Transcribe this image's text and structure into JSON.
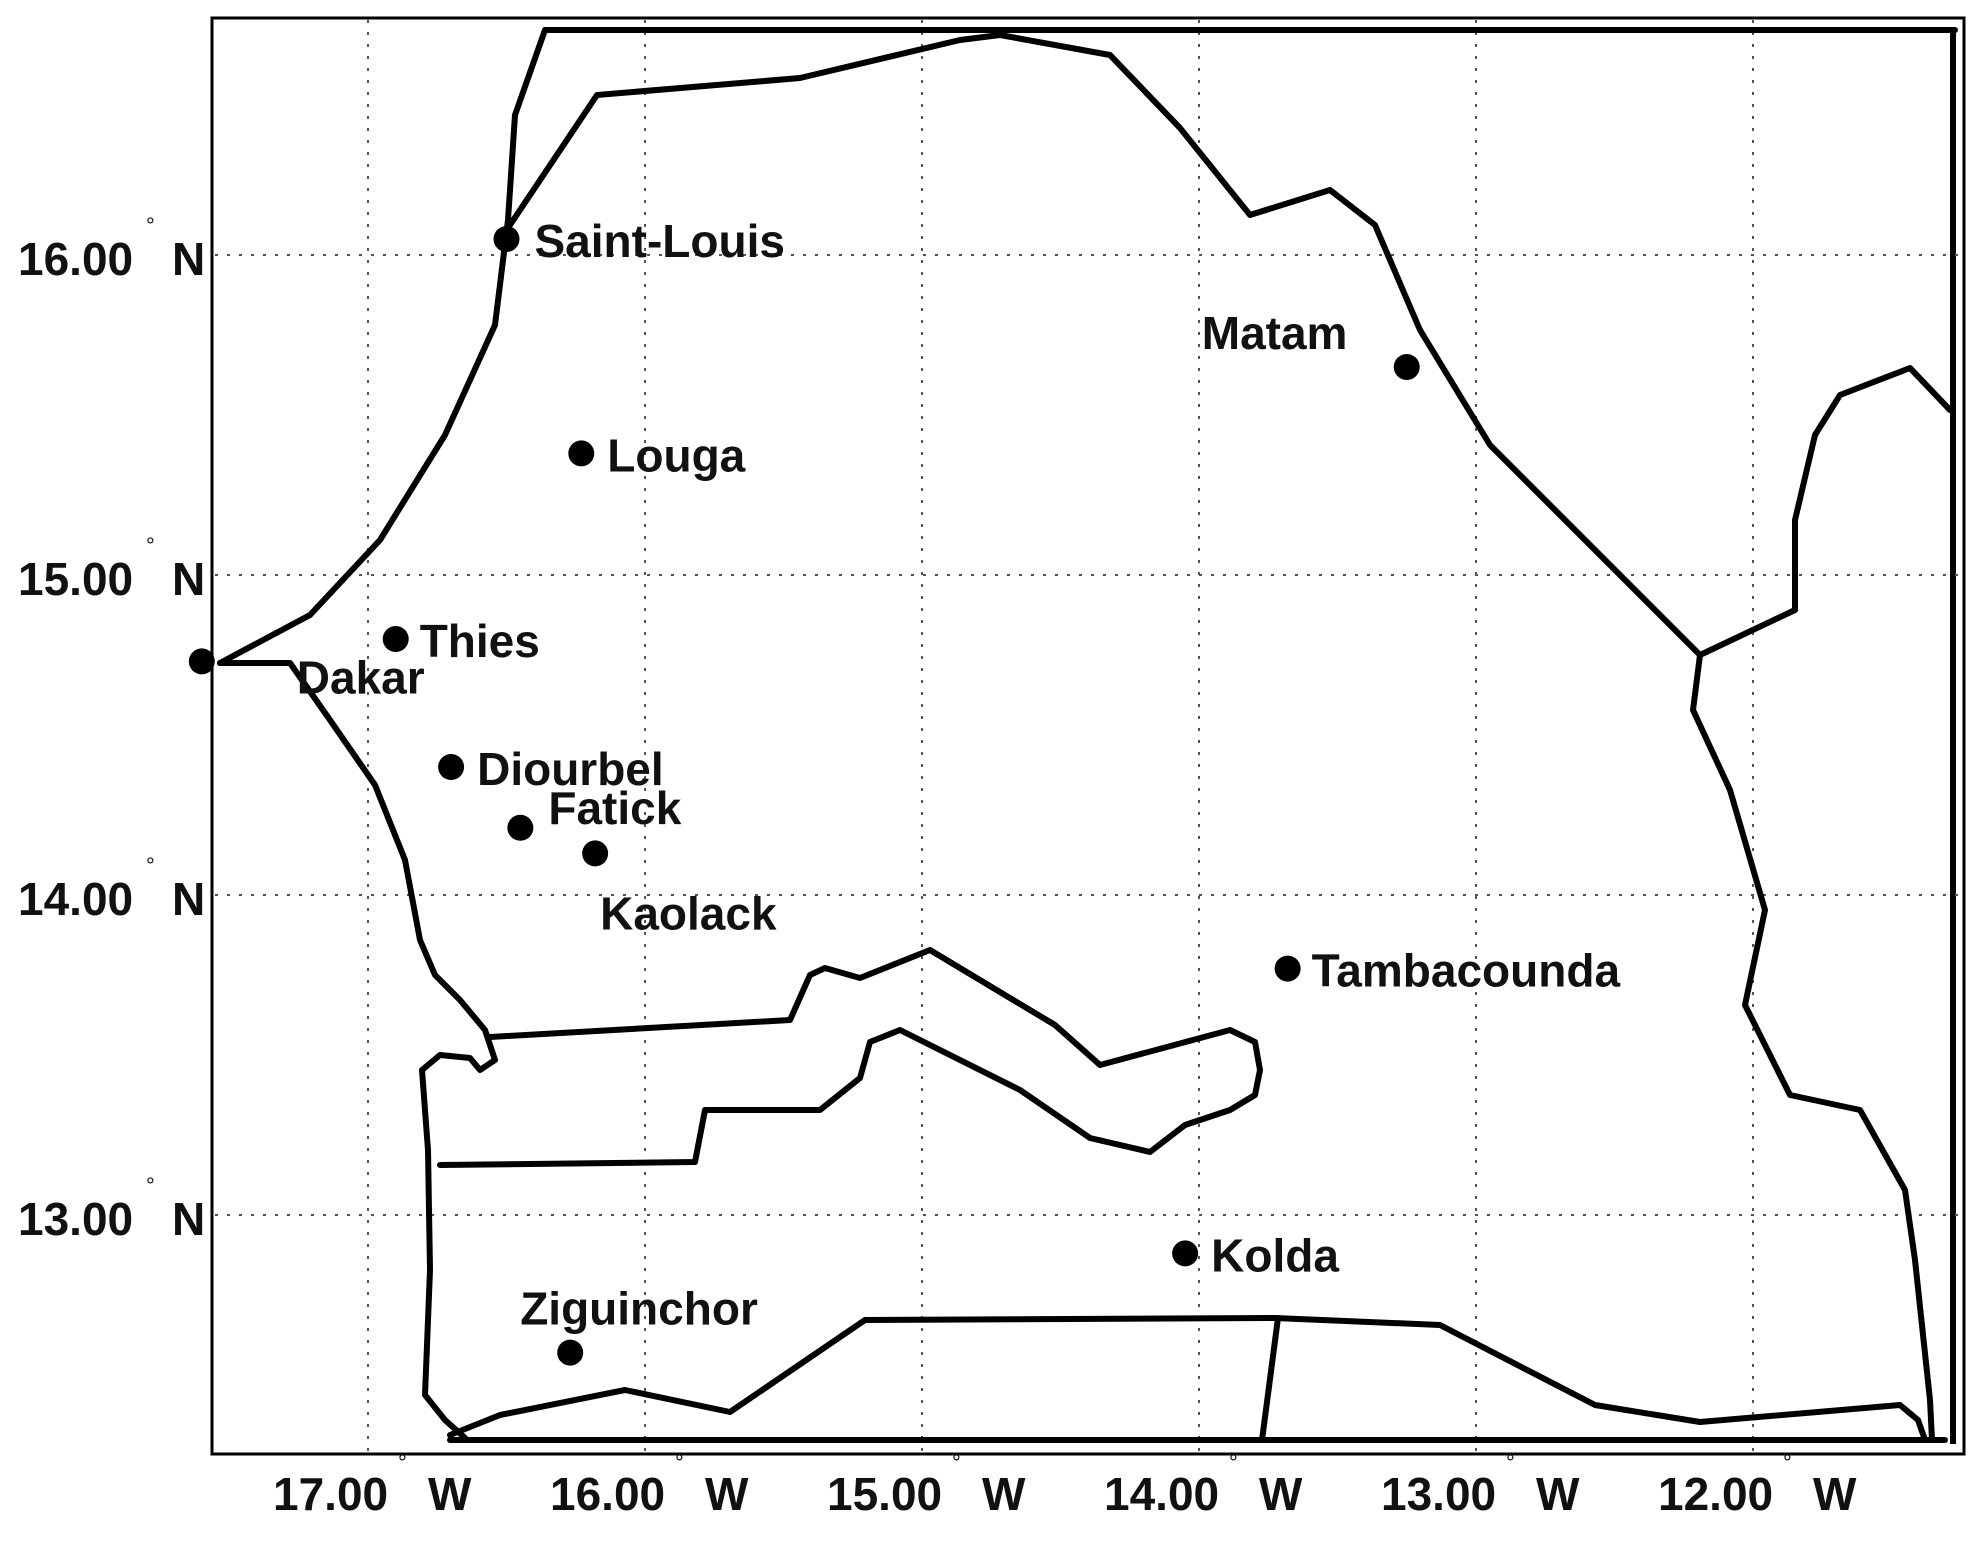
{
  "map": {
    "lat_ticks": [
      {
        "lat": 16,
        "label": "16.00",
        "hemi": "N"
      },
      {
        "lat": 15,
        "label": "15.00",
        "hemi": "N"
      },
      {
        "lat": 14,
        "label": "14.00",
        "hemi": "N"
      },
      {
        "lat": 13,
        "label": "13.00",
        "hemi": "N"
      }
    ],
    "lon_ticks": [
      {
        "lon": 17,
        "label": "17.00",
        "hemi": "W"
      },
      {
        "lon": 16,
        "label": "16.00",
        "hemi": "W"
      },
      {
        "lon": 15,
        "label": "15.00",
        "hemi": "W"
      },
      {
        "lon": 14,
        "label": "14.00",
        "hemi": "W"
      },
      {
        "lon": 13,
        "label": "13.00",
        "hemi": "W"
      },
      {
        "lon": 12,
        "label": "12.00",
        "hemi": "W"
      }
    ],
    "cities": [
      {
        "name": "Saint-Louis",
        "lon": -16.5,
        "lat": 16.05
      },
      {
        "name": "Matam",
        "lon": -13.25,
        "lat": 15.65
      },
      {
        "name": "Louga",
        "lon": -16.23,
        "lat": 15.38
      },
      {
        "name": "Thies",
        "lon": -16.9,
        "lat": 14.8
      },
      {
        "name": "Dakar",
        "lon": -17.6,
        "lat": 14.73
      },
      {
        "name": "Diourbel",
        "lon": -16.7,
        "lat": 14.4
      },
      {
        "name": "Fatick",
        "lon": -16.45,
        "lat": 14.21
      },
      {
        "name": "Kaolack",
        "lon": -16.18,
        "lat": 14.13
      },
      {
        "name": "Tambacounda",
        "lon": -13.68,
        "lat": 13.77
      },
      {
        "name": "Kolda",
        "lon": -14.05,
        "lat": 12.88
      },
      {
        "name": "Ziguinchor",
        "lon": -16.27,
        "lat": 12.57
      }
    ]
  }
}
